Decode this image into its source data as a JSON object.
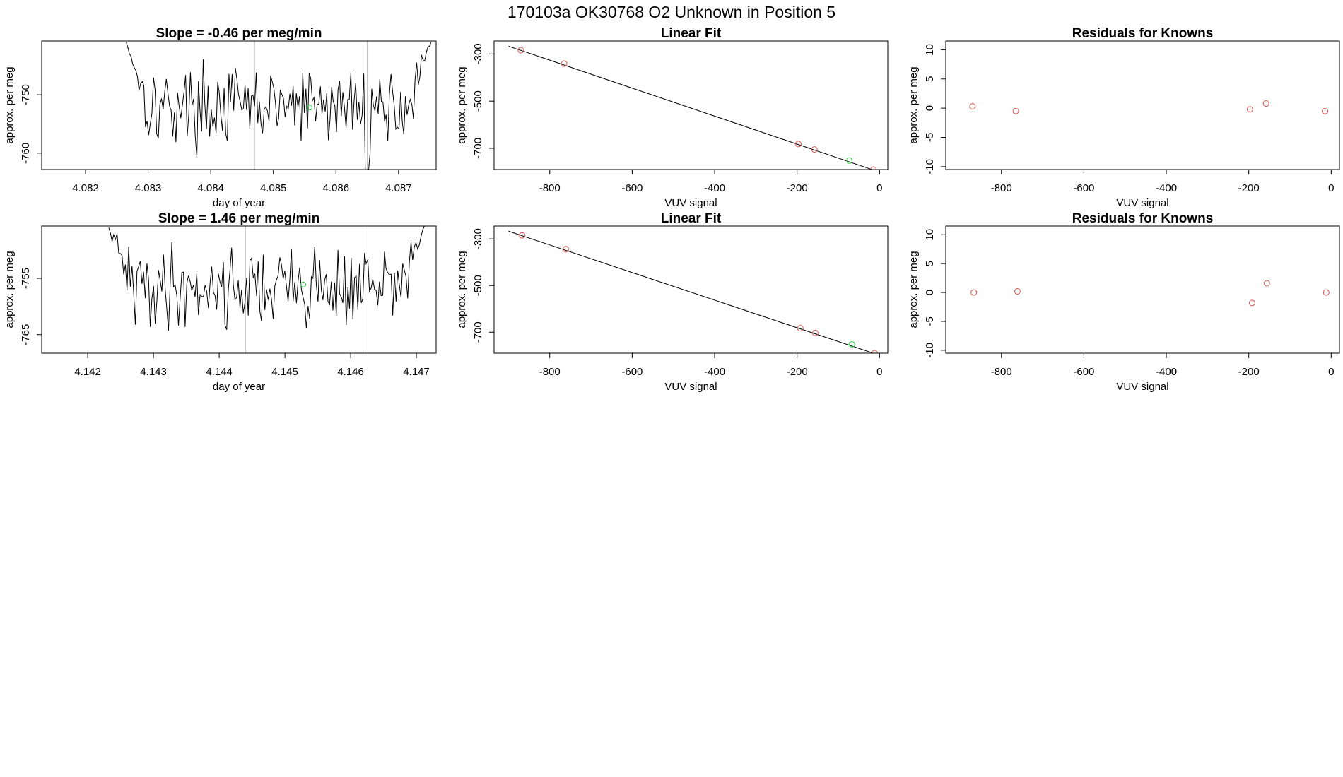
{
  "title": "170103a      OK30768    O2 Unknown in Position  5",
  "colors": {
    "known": "#d9534f",
    "unknown": "#2ecc40",
    "line": "#000000",
    "cycle_marker": "#bdbdbd"
  },
  "chart_data": [
    {
      "id": "r1-timeseries",
      "type": "line",
      "title": "Slope =  -0.46  per meg/min",
      "xlabel": "day of year",
      "ylabel": "approx. per meg",
      "xlim": [
        4.0813,
        4.0876
      ],
      "ylim": [
        -762.8,
        -740.8
      ],
      "xticks": [
        4.082,
        4.083,
        4.084,
        4.085,
        4.086,
        4.087
      ],
      "xtick_labels": [
        "4.082",
        "4.083",
        "4.084",
        "4.085",
        "4.086",
        "4.087"
      ],
      "yticks": [
        -760,
        -750
      ],
      "ytick_labels": [
        "-760",
        "-750"
      ],
      "cycle_markers": [
        4.0847,
        4.0865
      ],
      "series_start": 4.08265,
      "series_end": 4.08752,
      "seed": 17,
      "level": -752.0,
      "noise": 3.2,
      "edge_start": -741,
      "edge_end": -741,
      "dips": [
        [
          4.0865,
          -763
        ]
      ],
      "unknown_point": [
        4.08558,
        -752.2
      ]
    },
    {
      "id": "r1-linearfit",
      "type": "scatter",
      "title": "Linear Fit",
      "xlabel": "VUV signal",
      "ylabel": "approx. per meg",
      "xlim": [
        -935,
        20
      ],
      "ylim": [
        -790,
        -245
      ],
      "xticks": [
        -800,
        -600,
        -400,
        -200,
        0
      ],
      "xtick_labels": [
        "-800",
        "-600",
        "-400",
        "-200",
        "0"
      ],
      "yticks": [
        -700,
        -500,
        -300
      ],
      "ytick_labels": [
        "-700",
        "-500",
        "-300"
      ],
      "fit_line": [
        [
          -900,
          -267
        ],
        [
          -15,
          -792
        ]
      ],
      "known_points": [
        [
          -870,
          -284
        ],
        [
          -765,
          -341
        ],
        [
          -197,
          -682
        ],
        [
          -158,
          -705
        ],
        [
          -15,
          -790
        ]
      ],
      "unknown_points": [
        [
          -73,
          -752
        ]
      ]
    },
    {
      "id": "r1-residuals",
      "type": "scatter",
      "title": "Residuals for Knowns",
      "xlabel": "VUV signal",
      "ylabel": "approx. per meg",
      "xlim": [
        -935,
        20
      ],
      "ylim": [
        -10.5,
        11.5
      ],
      "xticks": [
        -800,
        -600,
        -400,
        -200,
        0
      ],
      "xtick_labels": [
        "-800",
        "-600",
        "-400",
        "-200",
        "0"
      ],
      "yticks": [
        -10,
        -5,
        0,
        5,
        10
      ],
      "ytick_labels": [
        "-10",
        "-5",
        "0",
        "5",
        "10"
      ],
      "known_points": [
        [
          -870,
          0.3
        ],
        [
          -765,
          -0.5
        ],
        [
          -197,
          -0.2
        ],
        [
          -158,
          0.8
        ],
        [
          -15,
          -0.5
        ]
      ]
    },
    {
      "id": "r2-timeseries",
      "type": "line",
      "title": "Slope =  1.46  per meg/min",
      "xlabel": "day of year",
      "ylabel": "approx. per meg",
      "xlim": [
        4.1413,
        4.1473
      ],
      "ylim": [
        -768.3,
        -745.7
      ],
      "xticks": [
        4.142,
        4.143,
        4.144,
        4.145,
        4.146,
        4.147
      ],
      "xtick_labels": [
        "4.142",
        "4.143",
        "4.144",
        "4.145",
        "4.146",
        "4.147"
      ],
      "yticks": [
        -765,
        -755
      ],
      "ytick_labels": [
        "-765",
        "-755"
      ],
      "cycle_markers": [
        4.1444,
        4.14622
      ],
      "series_start": 4.14232,
      "series_end": 4.14712,
      "seed": 41,
      "level": -756.5,
      "noise": 3.6,
      "edge_start": -746,
      "edge_end": -745.7,
      "dips": [],
      "unknown_point": [
        4.14528,
        -756.1
      ]
    },
    {
      "id": "r2-linearfit",
      "type": "scatter",
      "title": "Linear Fit",
      "xlabel": "VUV signal",
      "ylabel": "approx. per meg",
      "xlim": [
        -935,
        20
      ],
      "ylim": [
        -790,
        -245
      ],
      "xticks": [
        -800,
        -600,
        -400,
        -200,
        0
      ],
      "xtick_labels": [
        "-800",
        "-600",
        "-400",
        "-200",
        "0"
      ],
      "yticks": [
        -700,
        -500,
        -300
      ],
      "ytick_labels": [
        "-700",
        "-500",
        "-300"
      ],
      "fit_line": [
        [
          -900,
          -267
        ],
        [
          -12,
          -792
        ]
      ],
      "known_points": [
        [
          -867,
          -285
        ],
        [
          -761,
          -344
        ],
        [
          -192,
          -683
        ],
        [
          -156,
          -703
        ],
        [
          -12,
          -790
        ]
      ],
      "unknown_points": [
        [
          -67,
          -752
        ]
      ]
    },
    {
      "id": "r2-residuals",
      "type": "scatter",
      "title": "Residuals for Knowns",
      "xlabel": "VUV signal",
      "ylabel": "approx. per meg",
      "xlim": [
        -935,
        20
      ],
      "ylim": [
        -10.5,
        11.5
      ],
      "xticks": [
        -800,
        -600,
        -400,
        -200,
        0
      ],
      "xtick_labels": [
        "-800",
        "-600",
        "-400",
        "-200",
        "0"
      ],
      "yticks": [
        -10,
        -5,
        0,
        5,
        10
      ],
      "ytick_labels": [
        "-10",
        "-5",
        "0",
        "5",
        "10"
      ],
      "known_points": [
        [
          -867,
          0.0
        ],
        [
          -761,
          0.2
        ],
        [
          -192,
          -1.8
        ],
        [
          -156,
          1.6
        ],
        [
          -12,
          0.0
        ]
      ]
    }
  ]
}
